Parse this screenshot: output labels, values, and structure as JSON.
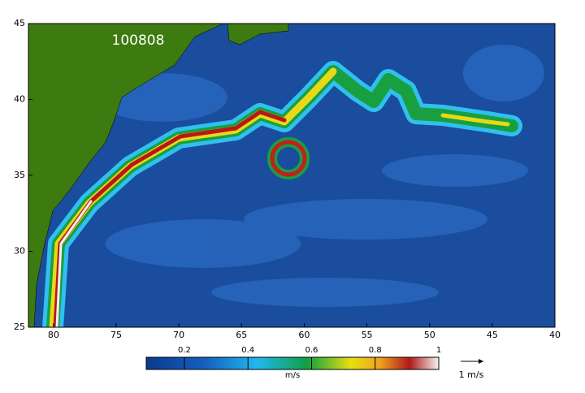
{
  "map": {
    "label": "100808",
    "lon_range": [
      82,
      40
    ],
    "lat_range": [
      25,
      45
    ],
    "lon_ticks": [
      80,
      75,
      70,
      65,
      60,
      55,
      50,
      45,
      40
    ],
    "lat_ticks": [
      25,
      30,
      35,
      40,
      45
    ],
    "colorbar": {
      "range": [
        0.08,
        1
      ],
      "ticks": [
        0.2,
        0.4,
        0.6,
        0.8,
        1
      ],
      "unit": "m/s"
    },
    "reference_arrow": "1 m/s"
  }
}
